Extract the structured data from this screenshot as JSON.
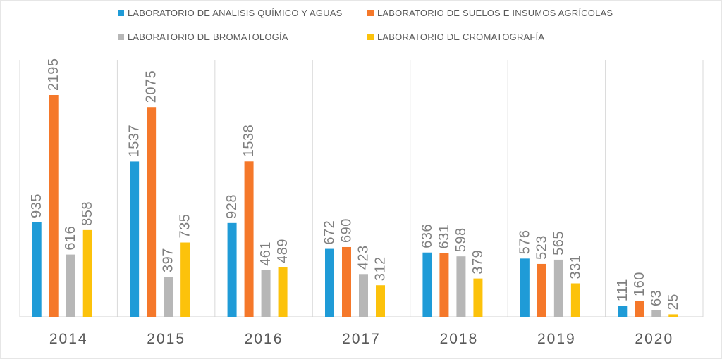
{
  "chart_data": {
    "type": "bar",
    "categories": [
      "2014",
      "2015",
      "2016",
      "2017",
      "2018",
      "2019",
      "2020"
    ],
    "series": [
      {
        "name": "LABORATORIO DE ANALISIS QUÍMICO Y AGUAS",
        "color": "#1f9bd7",
        "values": [
          935,
          1537,
          928,
          672,
          636,
          576,
          111
        ]
      },
      {
        "name": "LABORATORIO DE SUELOS E INSUMOS AGRÍCOLAS",
        "color": "#f5782a",
        "values": [
          2195,
          2075,
          1538,
          690,
          631,
          523,
          160
        ]
      },
      {
        "name": "LABORATORIO DE BROMATOLOGÍA",
        "color": "#b7b7b7",
        "values": [
          616,
          397,
          461,
          423,
          598,
          565,
          63
        ]
      },
      {
        "name": "LABORATORIO DE CROMATOGRAFÍA",
        "color": "#fcc20b",
        "values": [
          858,
          735,
          489,
          312,
          379,
          331,
          25
        ]
      }
    ],
    "ylim": [
      0,
      2300
    ],
    "grid": "vertical separators",
    "legend_position": "top",
    "data_labels": true,
    "title": "",
    "xlabel": "",
    "ylabel": ""
  }
}
